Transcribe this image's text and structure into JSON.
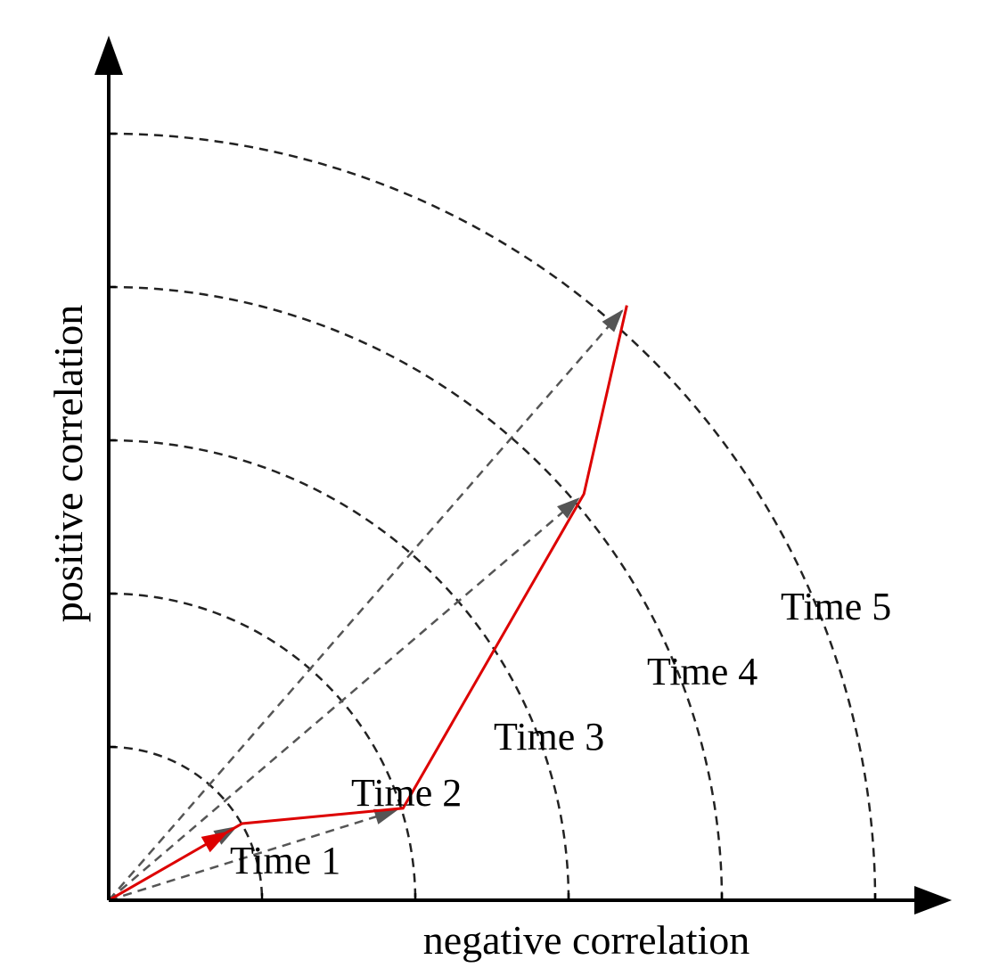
{
  "axes": {
    "x_label": "negative correlation",
    "y_label": "positive correlation"
  },
  "rings": [
    {
      "label": "Time 1"
    },
    {
      "label": "Time 2"
    },
    {
      "label": "Time 3"
    },
    {
      "label": "Time 4"
    },
    {
      "label": "Time 5"
    }
  ],
  "trajectory": {
    "points": [
      {
        "x": 0.0,
        "y": 0.0
      },
      {
        "x": 0.87,
        "y": 0.5
      },
      {
        "x": 1.92,
        "y": 0.6
      },
      {
        "x": 3.1,
        "y": 2.65
      },
      {
        "x": 3.38,
        "y": 3.88
      }
    ]
  },
  "colors": {
    "trajectory": "#dd0000",
    "vectors": "#555555",
    "rings": "#222222",
    "axes": "#000000"
  }
}
